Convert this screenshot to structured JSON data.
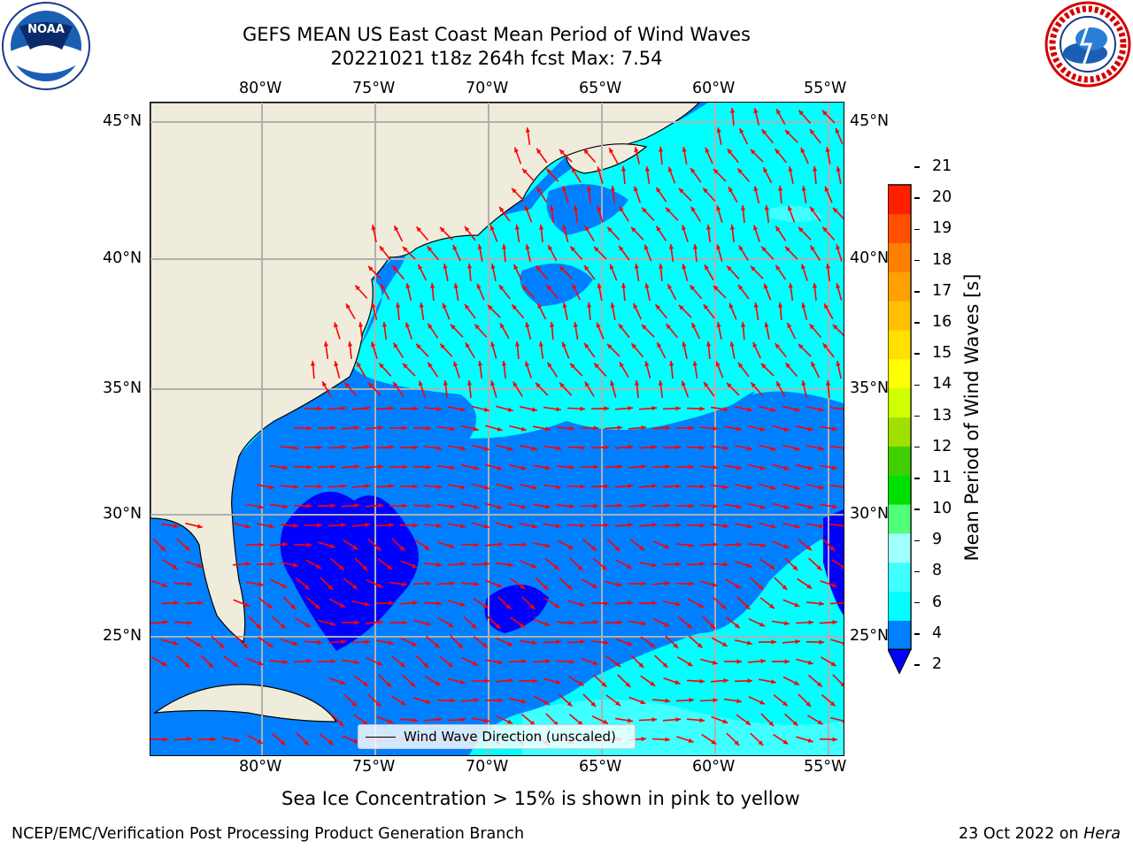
{
  "header": {
    "title_line1": "GEFS MEAN US East Coast Mean Period of Wind Waves",
    "title_line2": "20221021 t18z 264h fcst   Max: 7.54"
  },
  "logos": {
    "left": {
      "text": "NOAA",
      "icon": "noaa-logo-icon"
    },
    "right": {
      "icon": "national-weather-service-logo-icon"
    }
  },
  "map": {
    "lon_ticks": [
      "80°W",
      "75°W",
      "70°W",
      "65°W",
      "60°W",
      "55°W"
    ],
    "lat_ticks": [
      "45°N",
      "40°N",
      "35°N",
      "30°N",
      "25°N"
    ],
    "lon_range": [
      -85,
      -54.5
    ],
    "lat_range": [
      20.5,
      46
    ],
    "grid": true,
    "land_color": "#efecdc",
    "arrow_color": "#ff0000",
    "legend_label": "Wind Wave Direction (unscaled)",
    "legend_location": "bottom-center"
  },
  "colorbar": {
    "label": "Mean Period of Wind Waves [s]",
    "ticks": [
      "2",
      "4",
      "6",
      "8",
      "9",
      "10",
      "11",
      "12",
      "13",
      "14",
      "15",
      "16",
      "17",
      "18",
      "19",
      "20",
      "21"
    ],
    "colors": [
      "#0080ff",
      "#00ffff",
      "#40ffff",
      "#a0ffff",
      "#50ff78",
      "#00e000",
      "#40d000",
      "#a0e000",
      "#d0ff00",
      "#ffff00",
      "#ffe000",
      "#ffc000",
      "#ffa000",
      "#ff8000",
      "#ff5000",
      "#ff2000"
    ],
    "under_color": "#0000ff",
    "extend": "min"
  },
  "subtitle": "Sea Ice Concentration > 15% is shown in pink to yellow",
  "footer": {
    "left": "NCEP/EMC/Verification Post Processing Product Generation Branch",
    "right_prefix": "23 Oct 2022 on ",
    "right_host": "Hera"
  }
}
